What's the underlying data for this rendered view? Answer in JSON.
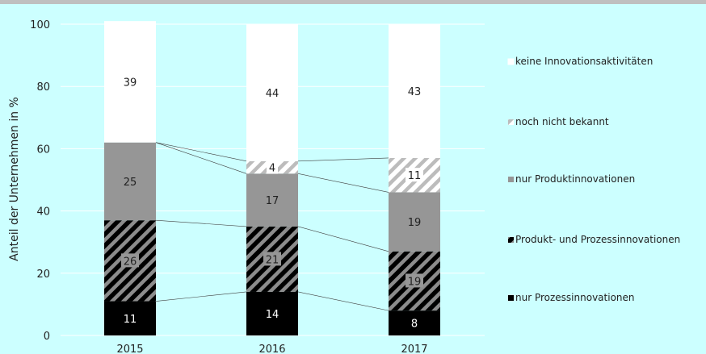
{
  "chart_data": {
    "type": "bar",
    "stacked": true,
    "categories": [
      "2015",
      "2016",
      "2017"
    ],
    "ylabel": "Anteil der Unternehmen in %",
    "ylim": [
      0,
      100
    ],
    "yticks": [
      0,
      20,
      40,
      60,
      80,
      100
    ],
    "grid": true,
    "legend_position": "right",
    "background": "#ccffff",
    "series": [
      {
        "name": "nur Prozessinnovationen",
        "values": [
          11,
          14,
          8
        ],
        "labels": [
          "11",
          "14",
          "8"
        ],
        "color": "#000000",
        "pattern": "solid"
      },
      {
        "name": "Produkt- und Prozessinnovationen",
        "values": [
          26,
          21,
          19
        ],
        "labels": [
          "26",
          "21",
          "19"
        ],
        "color": "#808080",
        "pattern": "dark-hatch"
      },
      {
        "name": "nur Produktinnovationen",
        "values": [
          25,
          17,
          19
        ],
        "labels": [
          "25",
          "17",
          "19"
        ],
        "color": "#969696",
        "pattern": "solid"
      },
      {
        "name": "noch nicht bekannt",
        "values": [
          0,
          4,
          11
        ],
        "labels": [
          "",
          "4",
          "11"
        ],
        "color": "#d9d9d9",
        "pattern": "light-hatch"
      },
      {
        "name": "keine Innovationsaktivitäten",
        "values": [
          39,
          44,
          43
        ],
        "labels": [
          "39",
          "44",
          "43"
        ],
        "color": "#ffffff",
        "pattern": "solid"
      }
    ]
  }
}
